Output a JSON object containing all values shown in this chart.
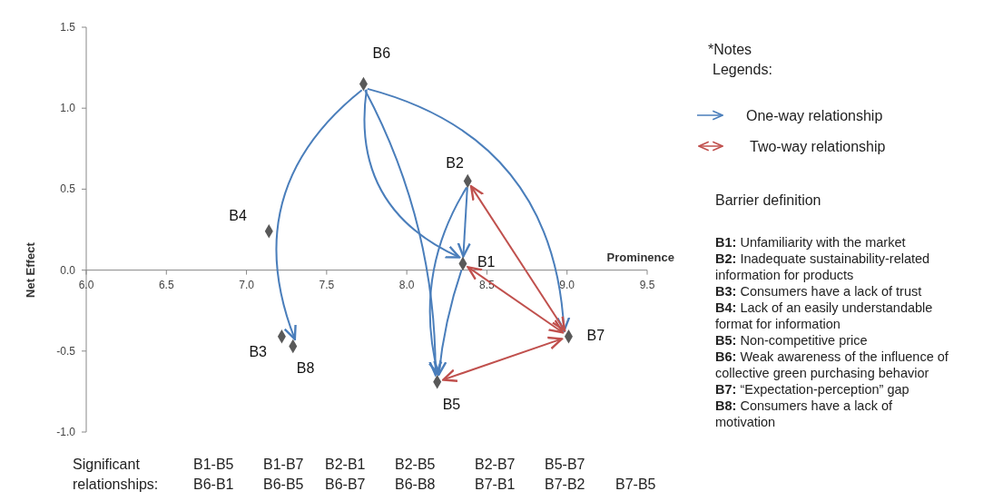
{
  "chart_data": {
    "type": "scatter",
    "xlabel": "Prominence",
    "ylabel": "Net Effect",
    "x": [
      8.35,
      8.38,
      7.22,
      7.14,
      8.19,
      7.73,
      9.01,
      7.29
    ],
    "series": [
      {
        "color": "#595959",
        "values": [
          0.04,
          0.55,
          -0.41,
          0.24,
          -0.69,
          1.15,
          -0.41,
          -0.47
        ]
      }
    ],
    "marker": "diamond",
    "grid": false,
    "xlim": [
      6,
      9.5
    ],
    "xticks": [
      {
        "value": 6,
        "label": "6.0"
      },
      {
        "value": 6.5,
        "label": "6.5"
      },
      {
        "value": 7,
        "label": "7.0"
      },
      {
        "value": 7.5,
        "label": "7.5"
      },
      {
        "value": 8,
        "label": "8.0"
      },
      {
        "value": 8.5,
        "label": "8.5"
      },
      {
        "value": 9,
        "label": "9.0"
      },
      {
        "value": 9.5,
        "label": "9.5"
      }
    ],
    "ylim": [
      -1,
      1.5
    ],
    "yticks": [
      {
        "value": -1,
        "label": "-1.0"
      },
      {
        "value": -0.5,
        "label": "-0.5"
      },
      {
        "value": 0,
        "label": "0.0"
      },
      {
        "value": 0.5,
        "label": "0.5"
      },
      {
        "value": 1,
        "label": "1.0"
      },
      {
        "value": 1.5,
        "label": "1.5"
      }
    ],
    "annotations": [
      {
        "text": "B1",
        "x": 8.35,
        "y": 0.04
      },
      {
        "text": "B2",
        "x": 8.38,
        "y": 0.55
      },
      {
        "text": "B3",
        "x": 7.22,
        "y": -0.41
      },
      {
        "text": "B4",
        "x": 7.14,
        "y": 0.24
      },
      {
        "text": "B5",
        "x": 8.19,
        "y": -0.69
      },
      {
        "text": "B6",
        "x": 7.73,
        "y": 1.15
      },
      {
        "text": "B7",
        "x": 9.01,
        "y": -0.41
      },
      {
        "text": "B8",
        "x": 7.29,
        "y": -0.47
      },
      "*Notes",
      "Legends:",
      "One-way relationship",
      "Two-way relationship",
      "Barrier definition",
      "B1: Unfamiliarity with the market",
      "B2: Inadequate sustainability-related information for products",
      "B3: Consumers have a lack of trust",
      "B4: Lack of an easily understandable format for information",
      "B5: Non-competitive price",
      "B6: Weak awareness of the influence of collective green purchasing behavior",
      "B7: “Expectation-perception” gap",
      "B8: Consumers have a lack of motivation",
      "Significant",
      "relationships:",
      "B1-B5",
      "B6-B1",
      "B1-B7",
      "B6-B5",
      "B2-B1",
      "B6-B7",
      "B2-B5",
      "B6-B8",
      "B2-B7",
      "B7-B1",
      "B5-B7",
      "B7-B2",
      "B7-B5"
    ]
  }
}
